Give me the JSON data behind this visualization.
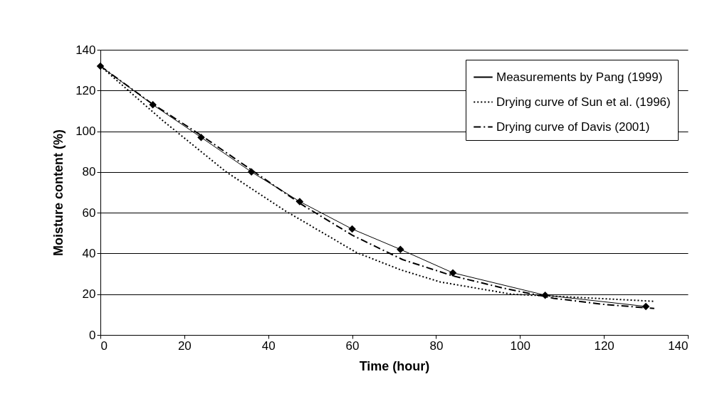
{
  "chart_data": {
    "type": "line",
    "xlabel": "Time (hour)",
    "ylabel": "Moisture content (%)",
    "xlim": [
      0,
      140
    ],
    "xticks": [
      0,
      20,
      40,
      60,
      80,
      100,
      120,
      140
    ],
    "ylim": [
      0,
      140
    ],
    "yticks": [
      0,
      20,
      40,
      60,
      80,
      100,
      120,
      140
    ],
    "grid": "y",
    "legend": "top right",
    "series": [
      {
        "name": "Measurements by Pang (1999)",
        "color": "#000000",
        "marker": "diamond",
        "line_style": "solid",
        "x": [
          0,
          12.5,
          24,
          36,
          47.5,
          60,
          71.5,
          84,
          106,
          130
        ],
        "values": [
          132,
          113,
          97,
          80,
          65.5,
          52,
          42,
          30.5,
          19.5,
          14
        ]
      },
      {
        "name": "Drying curve of Sun et al. (1996)",
        "color": "#000000",
        "marker": "none",
        "line_style": "dotted",
        "x": [
          0,
          15,
          30,
          44,
          61,
          71.5,
          81,
          98,
          118,
          132
        ],
        "values": [
          132,
          105,
          80,
          61,
          40.5,
          32,
          26,
          20,
          18,
          16.5
        ]
      },
      {
        "name": "Drying curve of Davis (2001)",
        "color": "#000000",
        "marker": "none",
        "line_style": "dashed",
        "x": [
          0,
          12,
          24,
          36,
          48,
          60,
          72,
          84,
          96,
          108,
          120,
          132
        ],
        "values": [
          132,
          114,
          98,
          81,
          64,
          49,
          37,
          29,
          23,
          18,
          15,
          13
        ]
      }
    ]
  }
}
